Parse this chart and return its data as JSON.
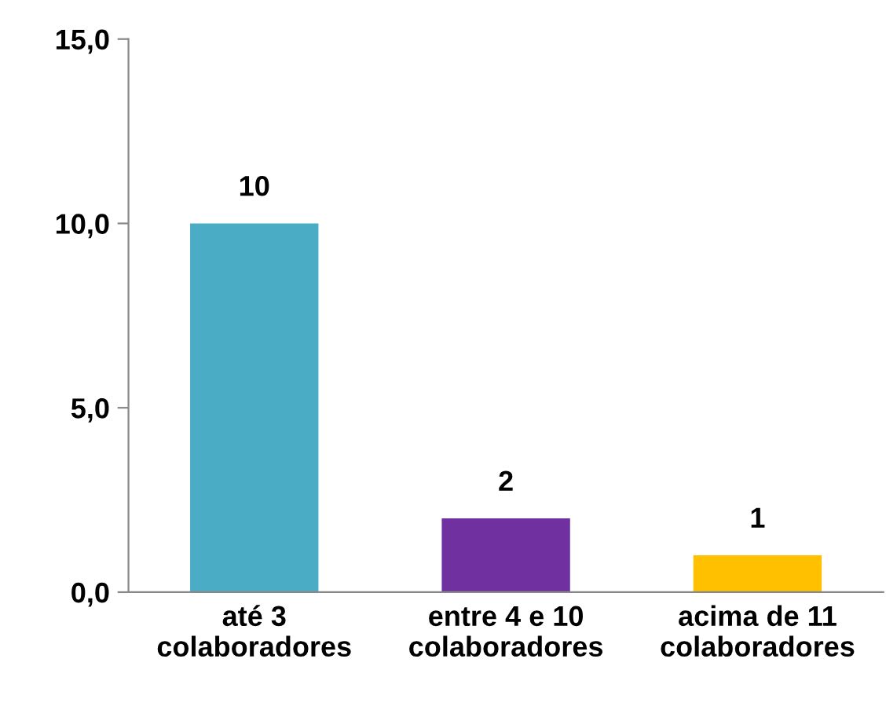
{
  "chart_data": {
    "type": "bar",
    "categories": [
      "até 3 colaboradores",
      "entre 4 e 10 colaboradores",
      "acima de 11 colaboradores"
    ],
    "values": [
      10,
      2,
      1
    ],
    "colors": [
      "#4bacc6",
      "#7030a0",
      "#ffc000"
    ],
    "ylim": [
      0,
      15
    ],
    "yticks": [
      {
        "value": 0,
        "label": "0,0"
      },
      {
        "value": 5,
        "label": "5,0"
      },
      {
        "value": 10,
        "label": "10,0"
      },
      {
        "value": 15,
        "label": "15,0"
      }
    ],
    "data_labels": true,
    "grid": false,
    "legend": false
  }
}
